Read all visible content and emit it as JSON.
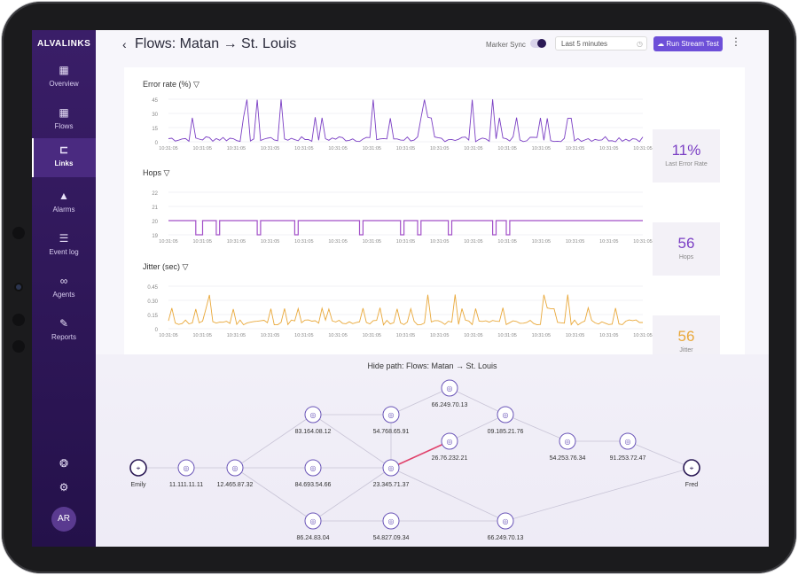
{
  "brand": "ALVALINKS",
  "nav": [
    {
      "label": "Overview",
      "icon": "grid-icon"
    },
    {
      "label": "Flows",
      "icon": "grid-icon"
    },
    {
      "label": "Links",
      "icon": "link-icon"
    },
    {
      "label": "Alarms",
      "icon": "warning-icon"
    },
    {
      "label": "Event log",
      "icon": "list-icon"
    },
    {
      "label": "Agents",
      "icon": "infinity-icon"
    },
    {
      "label": "Reports",
      "icon": "chat-icon"
    }
  ],
  "user": {
    "initials": "AR"
  },
  "header": {
    "title_from": "Flows: Matan",
    "title_to": "St. Louis",
    "marker_sync": "Marker Sync",
    "time_range": "Last 5 minutes",
    "run_button": "Run Stream Test"
  },
  "charts": {
    "error": {
      "title": "Error rate (%)",
      "yticks": [
        "45",
        "30",
        "15",
        "0"
      ],
      "stat_value": "11%",
      "stat_label": "Last Error Rate",
      "color": "#7b3fc4"
    },
    "hops": {
      "title": "Hops",
      "yticks": [
        "22",
        "21",
        "20",
        "19"
      ],
      "stat_value": "56",
      "stat_label": "Hops",
      "color": "#a24fc8"
    },
    "jitter": {
      "title": "Jitter (sec)",
      "yticks": [
        "0.45",
        "0.30",
        "0.15",
        "0"
      ],
      "stat_value": "56",
      "stat_label": "Jitter",
      "color": "#e9a83a"
    },
    "xtick": "10:31:05"
  },
  "path": {
    "header_from": "Hide path: Flows: Matan",
    "header_to": "St. Louis",
    "nodes": [
      {
        "id": "emily",
        "label": "Emily"
      },
      {
        "id": "n1",
        "label": "11.111.11.11"
      },
      {
        "id": "n2",
        "label": "12.465.87.32"
      },
      {
        "id": "n3",
        "label": "83.164.08.12"
      },
      {
        "id": "n4",
        "label": "84.693.54.66"
      },
      {
        "id": "n5",
        "label": "86.24.83.04"
      },
      {
        "id": "n6",
        "label": "54.768.65.91"
      },
      {
        "id": "n7",
        "label": "23.345.71.37"
      },
      {
        "id": "n8",
        "label": "54.827.09.34"
      },
      {
        "id": "n9",
        "label": "66.249.70.13"
      },
      {
        "id": "n10",
        "label": "26.76.232.21"
      },
      {
        "id": "n11",
        "label": "09.185.21.76"
      },
      {
        "id": "n12",
        "label": "66.249.70.13"
      },
      {
        "id": "n13",
        "label": "54.253.76.34"
      },
      {
        "id": "n14",
        "label": "91.253.72.47"
      },
      {
        "id": "fred",
        "label": "Fred"
      }
    ]
  }
}
